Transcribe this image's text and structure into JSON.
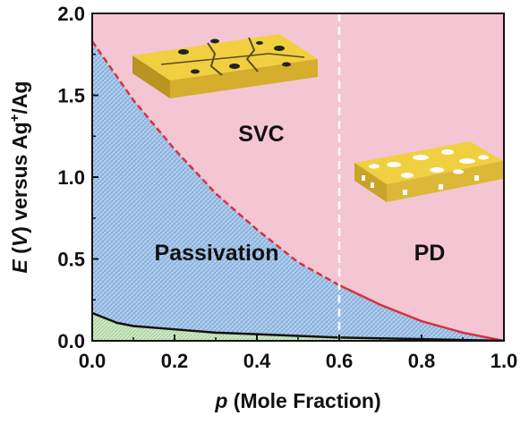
{
  "chart_data": {
    "type": "area",
    "xlabel_var": "p",
    "xlabel_rest": " (Mole Fraction)",
    "ylabel_e": "E",
    "ylabel_v": "V",
    "ylabel_rest": " versus Ag",
    "ylabel_sup": "+",
    "ylabel_end": "/Ag",
    "xlim": [
      0.0,
      1.0
    ],
    "ylim": [
      0.0,
      2.0
    ],
    "x_ticks": [
      "0.0",
      "0.2",
      "0.4",
      "0.6",
      "0.8",
      "1.0"
    ],
    "y_ticks": [
      "0.0",
      "0.5",
      "1.0",
      "1.5",
      "2.0"
    ],
    "regions": [
      {
        "label": "SVC",
        "color": "#f4c6d4"
      },
      {
        "label": "Passivation",
        "color": "#a9c6e6"
      },
      {
        "label": "PD",
        "color": "#f4c6d4"
      },
      {
        "label": "",
        "color": "#c8e3c1"
      }
    ],
    "boundary_curve": {
      "x": [
        0.0,
        0.1,
        0.2,
        0.3,
        0.4,
        0.5,
        0.6,
        0.7,
        0.8,
        0.9,
        1.0
      ],
      "y": [
        1.83,
        1.47,
        1.17,
        0.9,
        0.68,
        0.48,
        0.34,
        0.22,
        0.12,
        0.05,
        0.0
      ],
      "color": "#e0303a"
    },
    "lower_curve": {
      "x": [
        0.0,
        0.03,
        0.06,
        0.1,
        0.2,
        0.3,
        0.4,
        0.5,
        0.6,
        0.7,
        0.8,
        0.9,
        1.0
      ],
      "y": [
        0.17,
        0.14,
        0.11,
        0.09,
        0.07,
        0.05,
        0.04,
        0.03,
        0.02,
        0.015,
        0.01,
        0.005,
        0.0
      ],
      "color": "#111111"
    },
    "divider_x": 0.6,
    "colors": {
      "pink": "#f4c6d4",
      "blue": "#a9c6e6",
      "green": "#c8e3c1",
      "gold": "#e8c43a"
    }
  }
}
